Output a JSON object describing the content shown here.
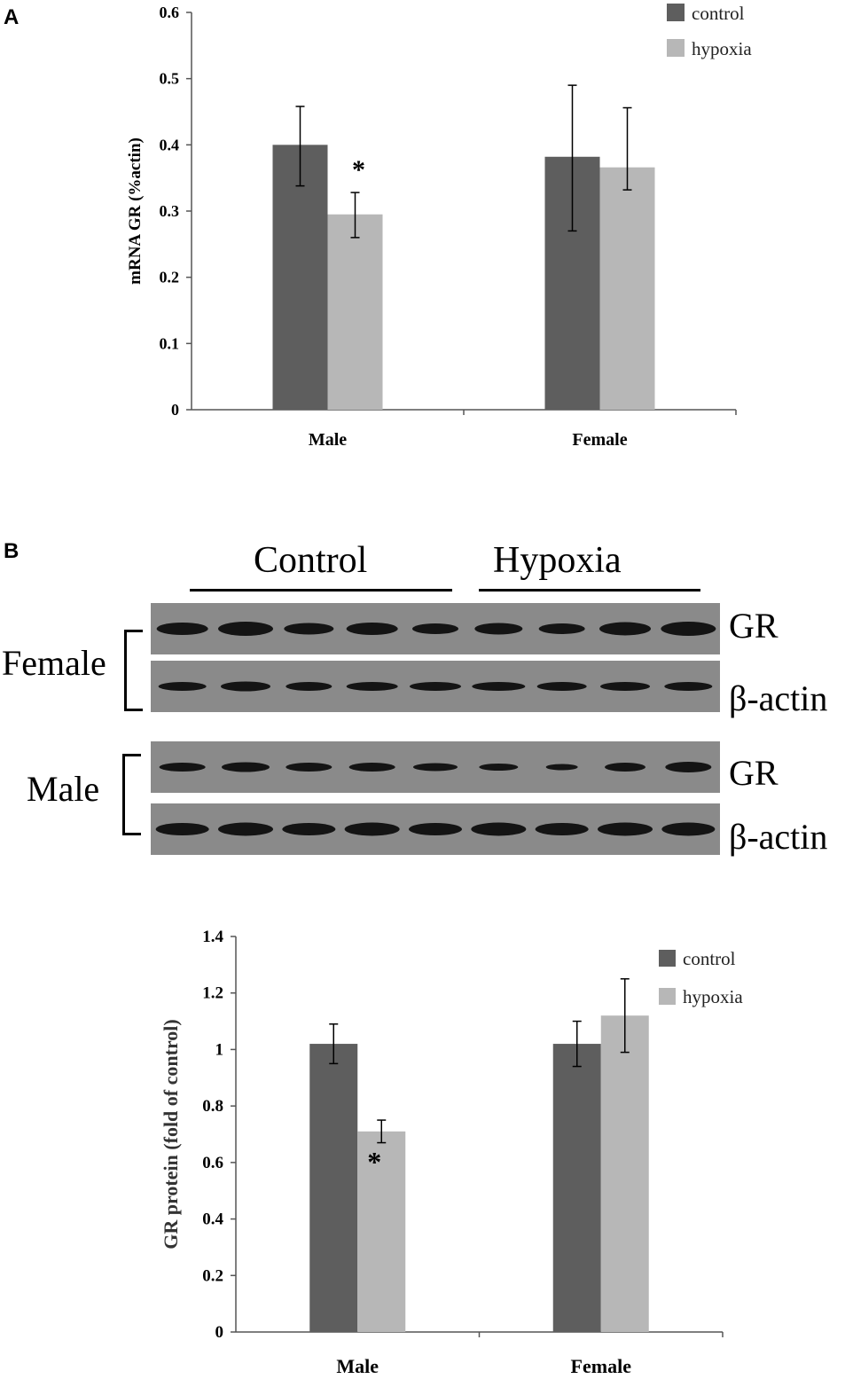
{
  "panel_a": {
    "letter": "A"
  },
  "panel_b": {
    "letter": "B",
    "blot": {
      "groups": [
        {
          "label": "Control",
          "lanes": 5
        },
        {
          "label": "Hypoxia",
          "lanes": 4
        }
      ],
      "sexes": [
        {
          "label": "Female"
        },
        {
          "label": "Male"
        }
      ],
      "bands": [
        {
          "label": "GR"
        },
        {
          "label": "β-actin"
        }
      ],
      "colors": {
        "background": "#8a8a8a",
        "band": "#141414"
      }
    }
  },
  "chart_data": [
    {
      "type": "bar",
      "panel": "A",
      "categories": [
        "Male",
        "Female"
      ],
      "series": [
        {
          "name": "control",
          "color": "#5e5e5e",
          "values": [
            0.4,
            0.382
          ],
          "errors": [
            [
              0.338,
              0.458
            ],
            [
              0.27,
              0.49
            ]
          ]
        },
        {
          "name": "hypoxia",
          "color": "#b7b7b7",
          "values": [
            0.295,
            0.366
          ],
          "errors": [
            [
              0.26,
              0.328
            ],
            [
              0.332,
              0.456
            ]
          ]
        }
      ],
      "annotations": [
        {
          "text": "*",
          "category": "Male",
          "series": "hypoxia"
        }
      ],
      "ylabel": "mRNA GR (%actin)",
      "xlabel": "",
      "ylim": [
        0,
        0.6
      ],
      "yticks": [
        "0",
        "0.1",
        "0.2",
        "0.3",
        "0.4",
        "0.5",
        "0.6"
      ],
      "legend": "top-right",
      "grid": false
    },
    {
      "type": "bar",
      "panel": "B",
      "categories": [
        "Male",
        "Female"
      ],
      "series": [
        {
          "name": "control",
          "color": "#5e5e5e",
          "values": [
            1.02,
            1.02
          ],
          "errors": [
            [
              0.95,
              1.09
            ],
            [
              0.94,
              1.1
            ]
          ]
        },
        {
          "name": "hypoxia",
          "color": "#b7b7b7",
          "values": [
            0.71,
            1.12
          ],
          "errors": [
            [
              0.67,
              0.75
            ],
            [
              0.99,
              1.25
            ]
          ]
        }
      ],
      "annotations": [
        {
          "text": "*",
          "category": "Male",
          "series": "hypoxia"
        }
      ],
      "ylabel": "GR protein (fold of control)",
      "xlabel": "",
      "ylim": [
        0,
        1.4
      ],
      "yticks": [
        "0",
        "0.2",
        "0.4",
        "0.6",
        "0.8",
        "1",
        "1.2",
        "1.4"
      ],
      "legend": "top-right",
      "grid": false
    }
  ]
}
